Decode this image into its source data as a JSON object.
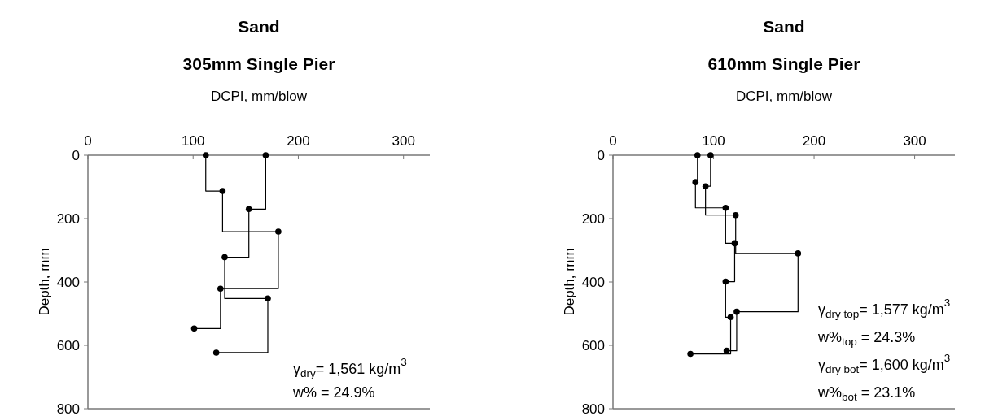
{
  "chart_data": [
    {
      "type": "step",
      "title": "Sand",
      "subtitle": "305mm Single Pier",
      "xlabel": "DCPI, mm/blow",
      "ylabel": "Depth, mm",
      "xlim": [
        0,
        325
      ],
      "xticks": [
        0,
        100,
        200,
        300
      ],
      "ylim": [
        800,
        0
      ],
      "yticks": [
        0,
        200,
        400,
        600,
        800
      ],
      "grid": false,
      "marker": "circle",
      "line_style": "solid",
      "series": [
        {
          "color": "#000000",
          "x": [
            112,
            128,
            181,
            126,
            101
          ],
          "values": [
            0,
            113,
            241,
            421,
            547
          ]
        },
        {
          "color": "#000000",
          "x": [
            169,
            153,
            130,
            171,
            122
          ],
          "values": [
            0,
            170,
            322,
            452,
            623
          ]
        }
      ],
      "annotations": [
        "γ$_{dry}$= 1,561 kg/m$^{3}$",
        "w% = 24.9%"
      ]
    },
    {
      "type": "step",
      "title": "Sand",
      "subtitle": "610mm Single Pier",
      "xlabel": "DCPI, mm/blow",
      "ylabel": "Depth, mm",
      "xlim": [
        0,
        340
      ],
      "xticks": [
        0,
        100,
        200,
        300
      ],
      "ylim": [
        800,
        0
      ],
      "yticks": [
        0,
        200,
        400,
        600,
        800
      ],
      "grid": false,
      "marker": "circle",
      "line_style": "solid",
      "series": [
        {
          "color": "#000000",
          "x": [
            84,
            82,
            112,
            121,
            112,
            117,
            77
          ],
          "values": [
            0,
            85,
            166,
            278,
            399,
            511,
            627
          ]
        },
        {
          "color": "#000000",
          "x": [
            97,
            92,
            122,
            184,
            123,
            113
          ],
          "values": [
            0,
            98,
            189,
            310,
            494,
            617
          ]
        }
      ],
      "annotations": [
        "γ$_{dry top}$= 1,577 kg/m$^{3}$",
        "w%$_{top}$ = 24.3%",
        "γ$_{dry bot}$= 1,600 kg/m$^{3}$",
        "w%$_{bot}$ = 23.1%"
      ]
    }
  ]
}
